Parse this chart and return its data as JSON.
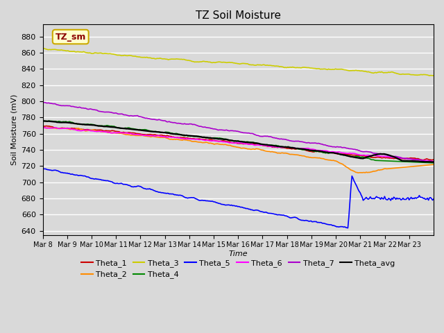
{
  "title": "TZ Soil Moisture",
  "xlabel": "Time",
  "ylabel": "Soil Moisture (mV)",
  "ylim": [
    635,
    895
  ],
  "yticks": [
    640,
    660,
    680,
    700,
    720,
    740,
    760,
    780,
    800,
    820,
    840,
    860,
    880
  ],
  "days": 16,
  "points_per_day": 24,
  "xtick_positions": [
    0,
    1,
    2,
    3,
    4,
    5,
    6,
    7,
    8,
    9,
    10,
    11,
    12,
    13,
    14,
    15
  ],
  "xtick_labels": [
    "Mar 8",
    "Mar 9",
    "Mar 10",
    "Mar 11",
    "Mar 12",
    "Mar 13",
    "Mar 14",
    "Mar 15",
    "Mar 16",
    "Mar 17",
    "Mar 18",
    "Mar 19",
    "Mar 20",
    "Mar 21",
    "Mar 22",
    "Mar 23"
  ],
  "legend_entries": [
    "Theta_1",
    "Theta_2",
    "Theta_3",
    "Theta_4",
    "Theta_5",
    "Theta_6",
    "Theta_7",
    "Theta_avg"
  ],
  "legend_colors": [
    "#cc0000",
    "#ff8c00",
    "#cccc00",
    "#008800",
    "#0000ff",
    "#ff00ff",
    "#aa00cc",
    "#000000"
  ],
  "annotation_text": "TZ_sm",
  "annotation_color": "#8b0000",
  "annotation_bg": "#ffffcc",
  "annotation_border": "#ccaa00",
  "bg_color": "#d9d9d9",
  "grid_color": "#ffffff",
  "line_width": 1.2
}
